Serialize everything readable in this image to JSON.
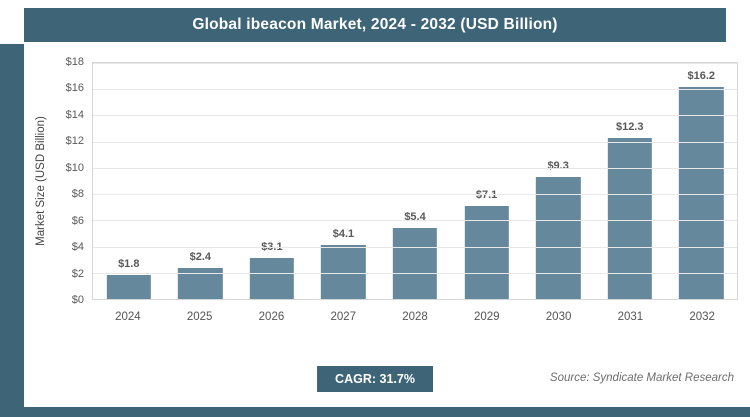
{
  "title": "Global ibeacon Market, 2024 - 2032 (USD Billion)",
  "chart_data": {
    "type": "bar",
    "categories": [
      "2024",
      "2025",
      "2026",
      "2027",
      "2028",
      "2029",
      "2030",
      "2031",
      "2032"
    ],
    "values": [
      1.8,
      2.4,
      3.1,
      4.1,
      5.4,
      7.1,
      9.3,
      12.3,
      16.2
    ],
    "title": "Global ibeacon Market, 2024 - 2032 (USD Billion)",
    "xlabel": "",
    "ylabel": "Market Size (USD Billion)",
    "ylim": [
      0,
      18
    ],
    "ytick_step": 2,
    "ytick_prefix": "$",
    "value_prefix": "$",
    "grid": true,
    "legend": "none"
  },
  "footer": {
    "cagr_label": "CAGR: 31.7%",
    "source": "Source: Syndicate Market Research"
  },
  "colors": {
    "accent": "#3d6477",
    "bar": "#65889c"
  }
}
